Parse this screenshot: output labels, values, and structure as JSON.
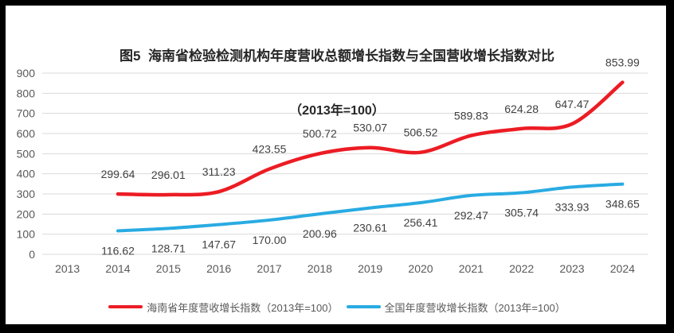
{
  "title": {
    "line1": "图5  海南省检验检测机构年度营收总额增长指数与全国营收增长指数对比",
    "line2": "（2013年=100）"
  },
  "chart_data": {
    "type": "line",
    "categories": [
      "2013",
      "2014",
      "2015",
      "2016",
      "2017",
      "2018",
      "2019",
      "2020",
      "2021",
      "2022",
      "2023",
      "2024"
    ],
    "series": [
      {
        "key": "hainan",
        "name": "海南省年度营收增长指数（2013年=100）",
        "color": "#EC1C24",
        "label_position": "above",
        "values": [
          null,
          299.64,
          296.01,
          311.23,
          423.55,
          500.72,
          530.07,
          506.52,
          589.83,
          624.28,
          647.47,
          853.99
        ]
      },
      {
        "key": "national",
        "name": "全国年度营收增长指数（2013年=100）",
        "color": "#29ABE2",
        "label_position": "below",
        "values": [
          null,
          116.62,
          128.71,
          147.67,
          170.0,
          200.96,
          230.61,
          256.41,
          292.47,
          305.74,
          333.93,
          348.65
        ]
      }
    ],
    "ylim": [
      0,
      900
    ],
    "ytick_step": 100,
    "yticks": [
      0,
      100,
      200,
      300,
      400,
      500,
      600,
      700,
      800,
      900
    ],
    "grid": "horizontal",
    "legend_position": "bottom",
    "label_decimals": 2,
    "smooth_lines": true
  },
  "colors": {
    "grid": "#D9D9D9",
    "axis_text": "#595959",
    "data_label_text": "#404040",
    "frame": "#000000",
    "background": "#FFFFFF"
  }
}
